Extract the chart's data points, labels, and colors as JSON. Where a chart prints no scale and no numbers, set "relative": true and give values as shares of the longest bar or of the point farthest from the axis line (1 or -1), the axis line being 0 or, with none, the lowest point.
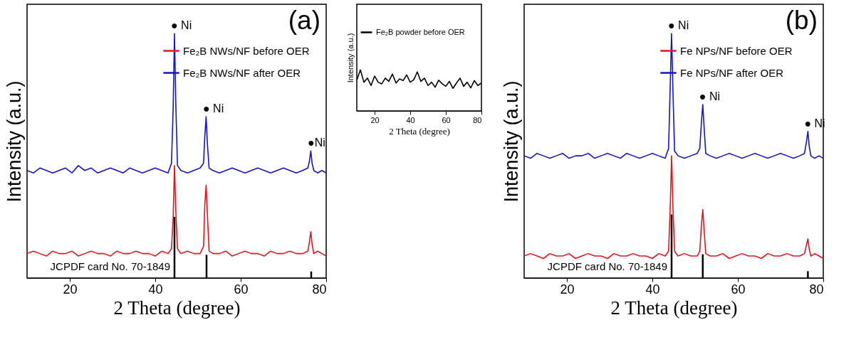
{
  "chart_data": [
    {
      "type": "line",
      "xlabel": "2 Theta (degree)",
      "ylabel": "Intensity (a.u.)",
      "relative": true,
      "xlim": [
        10,
        80
      ],
      "xticks": [
        20,
        40,
        60,
        80
      ],
      "legend": "top right",
      "annotations": [
        "(a)",
        {
          "text": "● Ni",
          "x": 44.5,
          "y": 1.0
        },
        {
          "text": "● Ni",
          "x": 52,
          "y": 0.66
        },
        {
          "text": "●Ni",
          "x": 76.5,
          "y": 0.52
        }
      ],
      "x": [
        10,
        11.5,
        13,
        14.5,
        16,
        17.5,
        19,
        20.5,
        22,
        23.5,
        25,
        26.5,
        28,
        29.5,
        31,
        32.5,
        34,
        35.5,
        37,
        38.5,
        40,
        41.5,
        43,
        43.8,
        44.2,
        44.5,
        44.8,
        45.2,
        46,
        47.5,
        49,
        50.5,
        51.3,
        51.6,
        51.9,
        52.2,
        52.6,
        53.5,
        55,
        56.5,
        58,
        59.5,
        61,
        62.5,
        64,
        65.5,
        67,
        68.5,
        70,
        71.5,
        73,
        74.5,
        75.7,
        76.1,
        76.4,
        76.7,
        77.1,
        78,
        79,
        80
      ],
      "series": [
        {
          "name": "Fe₂B NWs/NF before OER",
          "color": "#e8141c",
          "values": [
            0.1,
            0.11,
            0.1,
            0.09,
            0.11,
            0.1,
            0.1,
            0.11,
            0.09,
            0.1,
            0.11,
            0.1,
            0.1,
            0.09,
            0.11,
            0.1,
            0.1,
            0.11,
            0.1,
            0.1,
            0.09,
            0.11,
            0.1,
            0.12,
            0.25,
            0.46,
            0.28,
            0.12,
            0.1,
            0.11,
            0.1,
            0.1,
            0.13,
            0.3,
            0.38,
            0.26,
            0.11,
            0.1,
            0.1,
            0.11,
            0.09,
            0.1,
            0.11,
            0.1,
            0.1,
            0.09,
            0.11,
            0.1,
            0.1,
            0.11,
            0.1,
            0.1,
            0.11,
            0.15,
            0.19,
            0.14,
            0.1,
            0.11,
            0.1,
            0.09
          ]
        },
        {
          "name": "Fe₂B NWs/NF after OER",
          "color": "#1414d2",
          "values": [
            0.44,
            0.43,
            0.45,
            0.44,
            0.43,
            0.44,
            0.45,
            0.43,
            0.46,
            0.44,
            0.45,
            0.43,
            0.44,
            0.45,
            0.44,
            0.43,
            0.45,
            0.44,
            0.43,
            0.44,
            0.45,
            0.44,
            0.43,
            0.47,
            0.7,
            1.0,
            0.72,
            0.46,
            0.44,
            0.43,
            0.44,
            0.45,
            0.47,
            0.58,
            0.66,
            0.55,
            0.45,
            0.44,
            0.43,
            0.44,
            0.45,
            0.44,
            0.43,
            0.44,
            0.45,
            0.44,
            0.43,
            0.44,
            0.45,
            0.44,
            0.43,
            0.44,
            0.45,
            0.48,
            0.52,
            0.47,
            0.44,
            0.43,
            0.44,
            0.43
          ]
        },
        {
          "name": "JCPDF card No. 70-1849",
          "type": "bar",
          "color": "#000000",
          "x": [
            44.5,
            52,
            76.5
          ],
          "values": [
            0.25,
            0.095,
            0.027
          ]
        }
      ]
    },
    {
      "type": "line",
      "xlabel": "2 Theta (degree)",
      "ylabel": "Intensity (a.u.)",
      "relative": true,
      "xlim": [
        10,
        80
      ],
      "xticks": [
        20,
        40,
        60,
        80
      ],
      "legend": "top left",
      "x": [
        10,
        12,
        14,
        16,
        18,
        20,
        22,
        24,
        26,
        28,
        30,
        32,
        34,
        36,
        38,
        40,
        42,
        44,
        46,
        48,
        50,
        52,
        54,
        56,
        58,
        60,
        62,
        64,
        66,
        68,
        70,
        72,
        74,
        76,
        78,
        80
      ],
      "series": [
        {
          "name": "Fe₂B powder before OER",
          "color": "#000000",
          "values": [
            0.75,
            1.0,
            0.7,
            0.8,
            0.62,
            0.85,
            0.7,
            0.66,
            0.8,
            0.72,
            0.9,
            0.68,
            0.78,
            0.74,
            0.88,
            0.7,
            0.76,
            0.95,
            0.72,
            0.8,
            0.62,
            0.7,
            0.58,
            0.75,
            0.66,
            0.6,
            0.72,
            0.55,
            0.68,
            0.8,
            0.6,
            0.7,
            0.56,
            0.74,
            0.62,
            0.68
          ]
        }
      ]
    },
    {
      "type": "line",
      "xlabel": "2 Theta (degree)",
      "ylabel": "Intensity (a.u.)",
      "relative": true,
      "xlim": [
        10,
        80
      ],
      "xticks": [
        20,
        40,
        60,
        80
      ],
      "legend": "top right",
      "annotations": [
        "(b)",
        {
          "text": "● Ni",
          "x": 44.5,
          "y": 1.0
        },
        {
          "text": "● Ni",
          "x": 51.8,
          "y": 0.71
        },
        {
          "text": "● Ni",
          "x": 76.4,
          "y": 0.6
        }
      ],
      "x": [
        10,
        11.5,
        13,
        14.5,
        16,
        17.5,
        19,
        20.5,
        22,
        23.5,
        25,
        26.5,
        28,
        29.5,
        31,
        32.5,
        34,
        35.5,
        37,
        38.5,
        40,
        41.5,
        43,
        43.8,
        44.2,
        44.5,
        44.8,
        45.2,
        46,
        47.5,
        49,
        50.5,
        51.1,
        51.5,
        51.8,
        52.1,
        52.5,
        53.5,
        55,
        56.5,
        58,
        59.5,
        61,
        62.5,
        64,
        65.5,
        67,
        68.5,
        70,
        71.5,
        73,
        74.5,
        75.6,
        76.0,
        76.4,
        76.7,
        77.1,
        78,
        79,
        80
      ],
      "series": [
        {
          "name": "Fe NPs/NF before OER",
          "color": "#e8141c",
          "values": [
            0.09,
            0.1,
            0.09,
            0.08,
            0.1,
            0.09,
            0.09,
            0.1,
            0.08,
            0.09,
            0.1,
            0.09,
            0.09,
            0.08,
            0.1,
            0.09,
            0.09,
            0.1,
            0.09,
            0.09,
            0.08,
            0.1,
            0.09,
            0.11,
            0.3,
            0.5,
            0.3,
            0.11,
            0.09,
            0.1,
            0.09,
            0.09,
            0.11,
            0.22,
            0.28,
            0.2,
            0.1,
            0.09,
            0.09,
            0.1,
            0.08,
            0.09,
            0.1,
            0.09,
            0.09,
            0.08,
            0.1,
            0.09,
            0.09,
            0.1,
            0.09,
            0.09,
            0.1,
            0.13,
            0.16,
            0.12,
            0.09,
            0.1,
            0.09,
            0.08
          ]
        },
        {
          "name": "Fe NPs/NF after OER",
          "color": "#1414d2",
          "values": [
            0.5,
            0.49,
            0.51,
            0.5,
            0.49,
            0.5,
            0.51,
            0.49,
            0.5,
            0.5,
            0.51,
            0.49,
            0.5,
            0.51,
            0.5,
            0.49,
            0.51,
            0.5,
            0.49,
            0.5,
            0.51,
            0.5,
            0.49,
            0.53,
            0.8,
            1.0,
            0.78,
            0.52,
            0.5,
            0.49,
            0.5,
            0.51,
            0.53,
            0.64,
            0.71,
            0.62,
            0.51,
            0.5,
            0.49,
            0.5,
            0.51,
            0.5,
            0.49,
            0.5,
            0.51,
            0.5,
            0.49,
            0.5,
            0.51,
            0.5,
            0.49,
            0.5,
            0.51,
            0.55,
            0.6,
            0.54,
            0.5,
            0.49,
            0.5,
            0.49
          ]
        },
        {
          "name": "JCPDF card No. 70-1849",
          "type": "bar",
          "color": "#000000",
          "x": [
            44.5,
            51.8,
            76.4
          ],
          "values": [
            0.26,
            0.097,
            0.028
          ]
        }
      ]
    }
  ]
}
